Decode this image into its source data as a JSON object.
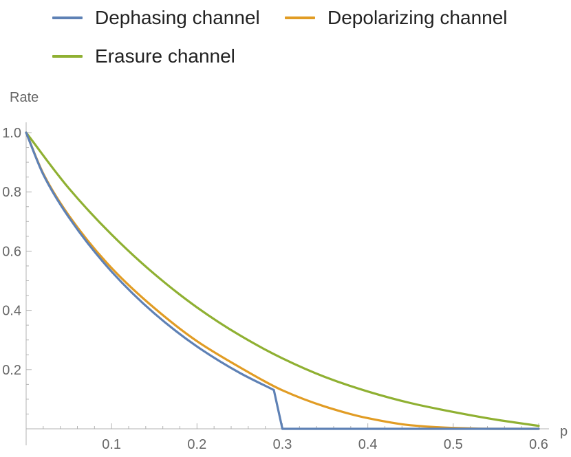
{
  "chart_data": {
    "type": "line",
    "xlabel": "p",
    "ylabel": "Rate",
    "xlim": [
      0,
      0.6
    ],
    "ylim": [
      0,
      1.0
    ],
    "x_ticks": [
      0.1,
      0.2,
      0.3,
      0.4,
      0.5,
      0.6
    ],
    "x_tick_labels": [
      "0.1",
      "0.2",
      "0.3",
      "0.4",
      "0.5",
      "0.6"
    ],
    "y_ticks": [
      0.2,
      0.4,
      0.6,
      0.8,
      1.0
    ],
    "y_tick_labels": [
      "0.2",
      "0.4",
      "0.6",
      "0.8",
      "1.0"
    ],
    "legend_position": "top",
    "grid": false,
    "series": [
      {
        "name": "Dephasing channel",
        "color": "#5E81B5",
        "x": [
          0.0,
          0.02,
          0.05,
          0.1,
          0.15,
          0.2,
          0.25,
          0.29,
          0.3,
          0.4,
          0.5,
          0.6
        ],
        "y": [
          1.0,
          0.859,
          0.714,
          0.531,
          0.39,
          0.278,
          0.189,
          0.131,
          0.0,
          0.0,
          0.0,
          0.0
        ]
      },
      {
        "name": "Depolarizing channel",
        "color": "#E19C24",
        "x": [
          0.0,
          0.02,
          0.05,
          0.1,
          0.15,
          0.2,
          0.25,
          0.3,
          0.35,
          0.4,
          0.45,
          0.5,
          0.55,
          0.6
        ],
        "y": [
          1.0,
          0.862,
          0.72,
          0.543,
          0.408,
          0.296,
          0.208,
          0.13,
          0.075,
          0.036,
          0.012,
          0.003,
          0.0,
          0.0
        ]
      },
      {
        "name": "Erasure channel",
        "color": "#8FB032",
        "x": [
          0.0,
          0.05,
          0.1,
          0.15,
          0.2,
          0.25,
          0.3,
          0.35,
          0.4,
          0.45,
          0.5,
          0.55,
          0.6
        ],
        "y": [
          1.0,
          0.812,
          0.656,
          0.523,
          0.41,
          0.316,
          0.238,
          0.175,
          0.126,
          0.087,
          0.057,
          0.031,
          0.01
        ]
      }
    ]
  }
}
